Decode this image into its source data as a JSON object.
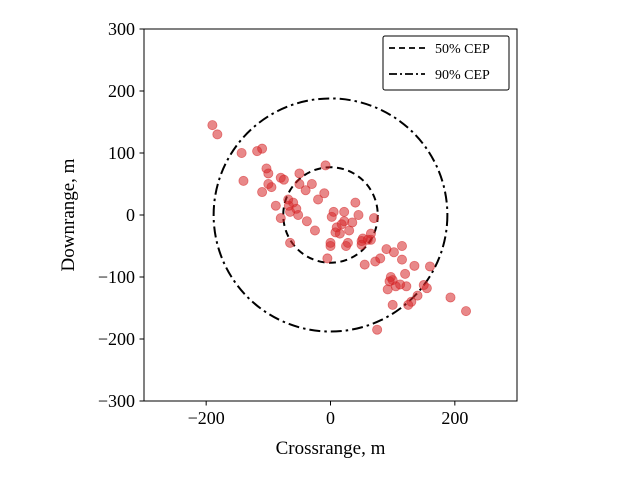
{
  "chart_data": {
    "type": "scatter",
    "title": "",
    "xlabel": "Crossrange, m",
    "ylabel": "Downrange, m",
    "xlim": [
      -300,
      300
    ],
    "ylim": [
      -300,
      300
    ],
    "x_ticks": [
      -200,
      0,
      200
    ],
    "y_ticks": [
      -300,
      -200,
      -100,
      0,
      100,
      200,
      300
    ],
    "x_tick_labels": [
      "−200",
      "0",
      "200"
    ],
    "y_tick_labels": [
      "−300",
      "−200",
      "−100",
      "0",
      "100",
      "200",
      "300"
    ],
    "grid": false,
    "legend_position": "top-right",
    "point_color": "#d62728",
    "circles": [
      {
        "name": "50% CEP",
        "center": [
          0,
          0
        ],
        "rx": 76,
        "ry": 77,
        "style": "dashed"
      },
      {
        "name": "90% CEP",
        "center": [
          0,
          0
        ],
        "rx": 188,
        "ry": 188,
        "style": "dashdot"
      }
    ],
    "series": [
      {
        "points": [
          [
            -190,
            145
          ],
          [
            -182,
            130
          ],
          [
            -143,
            100
          ],
          [
            -118,
            103
          ],
          [
            -110,
            107
          ],
          [
            -140,
            55
          ],
          [
            -110,
            37
          ],
          [
            -103,
            75
          ],
          [
            -100,
            67
          ],
          [
            -100,
            50
          ],
          [
            -95,
            45
          ],
          [
            -88,
            15
          ],
          [
            -80,
            -5
          ],
          [
            -80,
            60
          ],
          [
            -75,
            57
          ],
          [
            -68,
            25
          ],
          [
            -67,
            15
          ],
          [
            -65,
            5
          ],
          [
            -65,
            -45
          ],
          [
            -60,
            20
          ],
          [
            -55,
            10
          ],
          [
            -52,
            0
          ],
          [
            -50,
            67
          ],
          [
            -50,
            50
          ],
          [
            -40,
            40
          ],
          [
            -38,
            -10
          ],
          [
            -30,
            50
          ],
          [
            -25,
            -25
          ],
          [
            -20,
            25
          ],
          [
            -10,
            35
          ],
          [
            -8,
            80
          ],
          [
            -5,
            -70
          ],
          [
            0,
            -50
          ],
          [
            0,
            -45
          ],
          [
            2,
            -3
          ],
          [
            5,
            5
          ],
          [
            8,
            -28
          ],
          [
            10,
            -20
          ],
          [
            15,
            -30
          ],
          [
            18,
            -15
          ],
          [
            22,
            -10
          ],
          [
            22,
            5
          ],
          [
            25,
            -50
          ],
          [
            28,
            -45
          ],
          [
            30,
            -25
          ],
          [
            35,
            -12
          ],
          [
            40,
            20
          ],
          [
            45,
            0
          ],
          [
            50,
            -42
          ],
          [
            50,
            -48
          ],
          [
            52,
            -38
          ],
          [
            55,
            -80
          ],
          [
            60,
            -40
          ],
          [
            65,
            -40
          ],
          [
            65,
            -30
          ],
          [
            70,
            -5
          ],
          [
            72,
            -75
          ],
          [
            80,
            -70
          ],
          [
            75,
            -185
          ],
          [
            90,
            -55
          ],
          [
            92,
            -120
          ],
          [
            95,
            -107
          ],
          [
            97,
            -100
          ],
          [
            100,
            -145
          ],
          [
            100,
            -105
          ],
          [
            102,
            -60
          ],
          [
            105,
            -115
          ],
          [
            112,
            -112
          ],
          [
            115,
            -50
          ],
          [
            115,
            -72
          ],
          [
            120,
            -95
          ],
          [
            122,
            -115
          ],
          [
            125,
            -145
          ],
          [
            130,
            -140
          ],
          [
            135,
            -82
          ],
          [
            140,
            -130
          ],
          [
            150,
            -113
          ],
          [
            155,
            -118
          ],
          [
            160,
            -83
          ],
          [
            193,
            -133
          ],
          [
            218,
            -155
          ]
        ]
      }
    ]
  }
}
